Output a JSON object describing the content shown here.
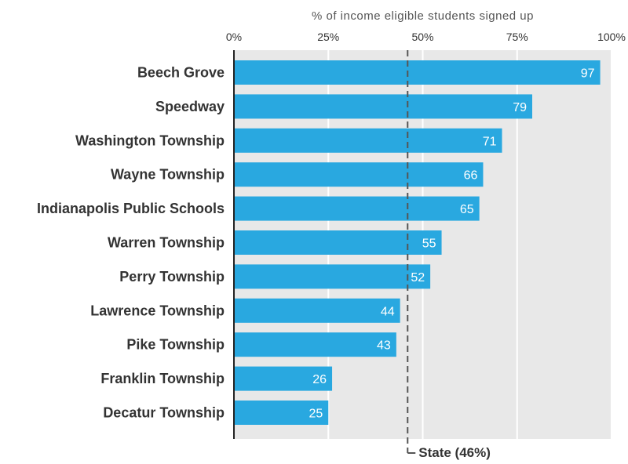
{
  "chart_data": {
    "type": "bar",
    "orientation": "horizontal",
    "xlabel": "% of income eligible students signed up",
    "xlim": [
      0,
      100
    ],
    "x_ticks": [
      "0%",
      "25%",
      "50%",
      "75%",
      "100%"
    ],
    "x_tick_values": [
      0,
      25,
      50,
      75,
      100
    ],
    "grid": true,
    "categories": [
      "Beech Grove",
      "Speedway",
      "Washington Township",
      "Wayne Township",
      "Indianapolis Public Schools",
      "Warren Township",
      "Perry Township",
      "Lawrence Township",
      "Pike Township",
      "Franklin Township",
      "Decatur Township"
    ],
    "values": [
      97,
      79,
      71,
      66,
      65,
      55,
      52,
      44,
      43,
      26,
      25
    ],
    "reference_line": {
      "label": "State (46%)",
      "value": 46
    },
    "colors": {
      "bar": "#29a8e0",
      "plot_background": "#e8e8e8",
      "grid": "#ffffff",
      "reference_line": "#555555"
    }
  }
}
